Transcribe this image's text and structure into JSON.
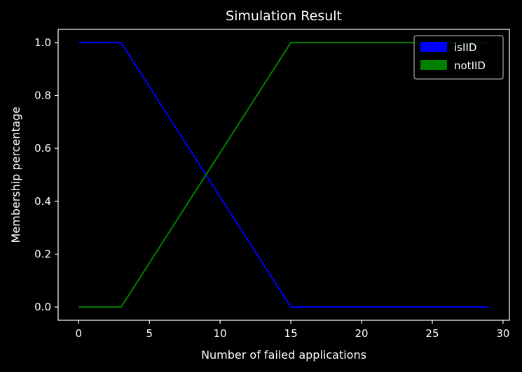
{
  "chart_data": {
    "type": "line",
    "title": "Simulation Result",
    "xlabel": "Number of failed applications",
    "ylabel": "Membership percentage",
    "xlim": [
      -1.45,
      30.45
    ],
    "ylim": [
      -0.05,
      1.05
    ],
    "xticks": [
      0,
      5,
      10,
      15,
      20,
      25,
      30
    ],
    "xtick_labels": [
      "0",
      "5",
      "10",
      "15",
      "20",
      "25",
      "30"
    ],
    "yticks": [
      0.0,
      0.2,
      0.4,
      0.6,
      0.8,
      1.0
    ],
    "ytick_labels": [
      "0.0",
      "0.2",
      "0.4",
      "0.6",
      "0.8",
      "1.0"
    ],
    "grid": false,
    "legend_position": "top-right",
    "series": [
      {
        "name": "isIID",
        "color": "#0000ff",
        "x": [
          0,
          3,
          15,
          29
        ],
        "y": [
          1.0,
          1.0,
          0.0,
          0.0
        ]
      },
      {
        "name": "notIID",
        "color": "#008000",
        "x": [
          0,
          3,
          15,
          29
        ],
        "y": [
          0.0,
          0.0,
          1.0,
          1.0
        ]
      }
    ]
  },
  "colors": {
    "background": "#000000",
    "axes": "#ffffff",
    "text": "#ffffff"
  }
}
